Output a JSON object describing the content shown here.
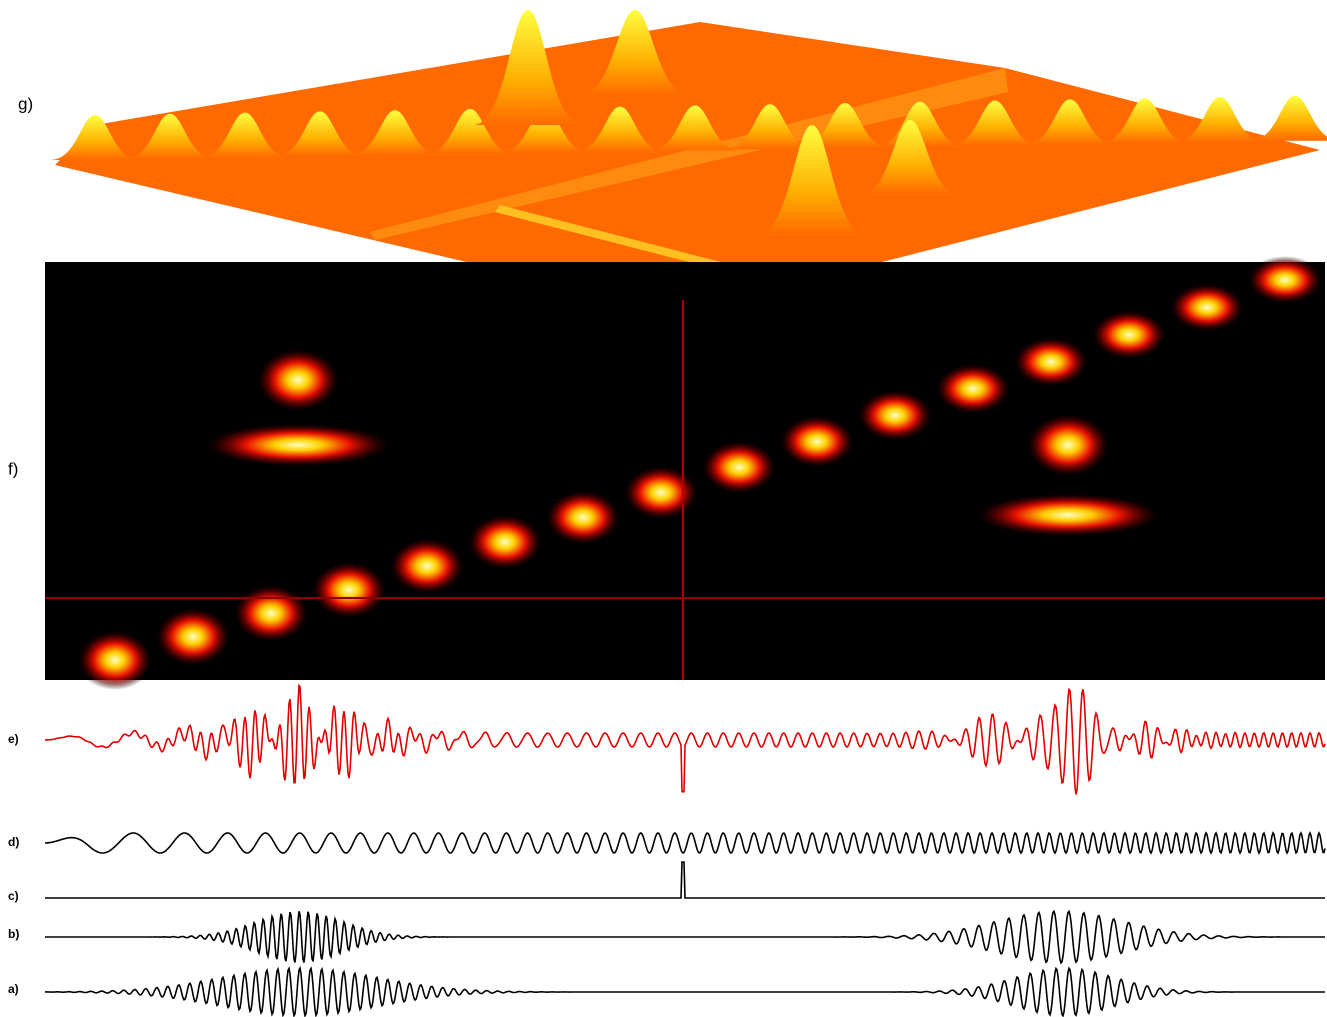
{
  "panels": [
    {
      "label": "g)"
    },
    {
      "label": "f)"
    },
    {
      "label": "e)"
    },
    {
      "label": "d)"
    },
    {
      "label": "c)"
    },
    {
      "label": "b)"
    },
    {
      "label": "a)"
    }
  ]
}
